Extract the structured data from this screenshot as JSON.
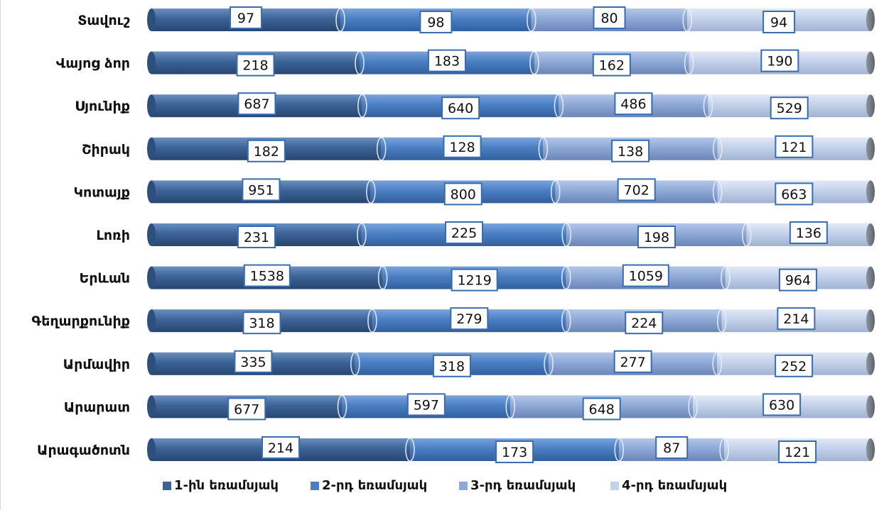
{
  "chart_data": {
    "type": "bar",
    "orientation": "horizontal",
    "stacked": "percent",
    "categories": [
      "Տավուշ",
      "Վայոց ձոր",
      "Սյունիք",
      "Շիրակ",
      "Կոտայք",
      "Լոռի",
      "Երևան",
      "Գեղարքունիք",
      "Արմավիր",
      "Արարատ",
      "Արագածոտն"
    ],
    "series": [
      {
        "name": "1-ին եռամսյակ",
        "values": [
          97,
          218,
          687,
          182,
          951,
          231,
          1538,
          318,
          335,
          677,
          214
        ]
      },
      {
        "name": "2-րդ եռամսյակ",
        "values": [
          98,
          183,
          640,
          128,
          800,
          225,
          1219,
          279,
          318,
          597,
          173
        ]
      },
      {
        "name": "3-րդ եռամսյակ",
        "values": [
          80,
          162,
          486,
          138,
          702,
          198,
          1059,
          224,
          277,
          648,
          87
        ]
      },
      {
        "name": "4-րդ եռամսյակ",
        "values": [
          94,
          190,
          529,
          121,
          663,
          136,
          964,
          214,
          252,
          630,
          121
        ]
      }
    ],
    "colors": [
      "#3c6397",
      "#4a7fc4",
      "#8ea9d6",
      "#c3d1ea"
    ],
    "legend_position": "bottom",
    "grid": false
  }
}
